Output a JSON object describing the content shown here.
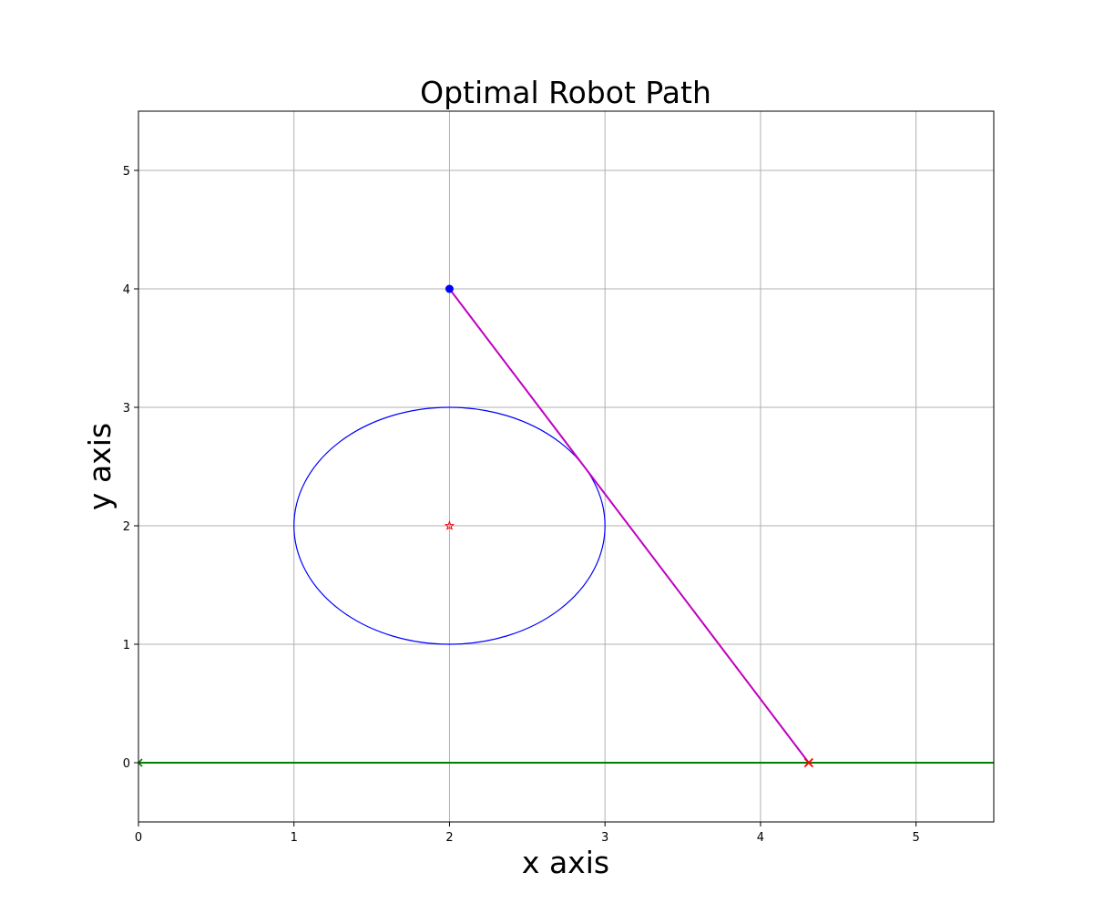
{
  "chart_data": {
    "type": "line",
    "title": "Optimal Robot Path",
    "xlabel": "x axis",
    "ylabel": "y axis",
    "xlim": [
      0,
      5.5
    ],
    "ylim": [
      -0.5,
      5.5
    ],
    "xticks": [
      0,
      1,
      2,
      3,
      4,
      5
    ],
    "yticks": [
      0,
      1,
      2,
      3,
      4,
      5
    ],
    "grid": true,
    "obstacle": {
      "shape": "circle",
      "center": [
        2,
        2
      ],
      "radius": 1,
      "color": "#0000ff"
    },
    "obstacle_center": {
      "x": 2,
      "y": 2,
      "marker": "star",
      "color": "#ff0000"
    },
    "start": {
      "x": 2,
      "y": 4,
      "marker": "circle",
      "color": "#0000ff"
    },
    "goal_line": {
      "y": 0,
      "x": [
        0,
        5.5
      ],
      "color": "#008000",
      "marker_at_x": 0
    },
    "goal": {
      "x": 4.31,
      "y": 0,
      "marker": "x",
      "color": "#ff0000"
    },
    "path": {
      "color": "#bf00bf",
      "x": [
        2,
        4.31
      ],
      "y": [
        4,
        0
      ]
    }
  }
}
